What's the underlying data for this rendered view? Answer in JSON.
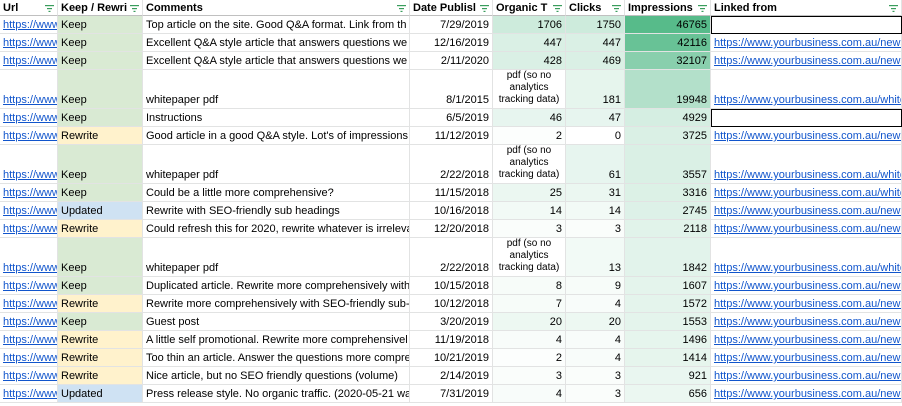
{
  "columns": [
    {
      "key": "url",
      "label": "Url"
    },
    {
      "key": "keep",
      "label": "Keep / Rewri"
    },
    {
      "key": "comments",
      "label": "Comments"
    },
    {
      "key": "date",
      "label": "Date Publisl"
    },
    {
      "key": "organic",
      "label": "Organic T"
    },
    {
      "key": "clicks",
      "label": "Clicks"
    },
    {
      "key": "impressions",
      "label": "Impressions"
    },
    {
      "key": "linked",
      "label": "Linked from"
    }
  ],
  "colors": {
    "keep": "#d9ead3",
    "rewrite": "#fff2cc",
    "updated": "#cfe2f3",
    "green_scale_low": "#ffffff",
    "green_scale_high": "#57bb8a",
    "link": "#1155cc",
    "filter_icon": "#3a9d5d"
  },
  "rows": [
    {
      "url": "https://www",
      "keep": "Keep",
      "status": "keep",
      "comments": "Top article on the site. Good Q&A format. Link from th",
      "date": "7/29/2019",
      "organic": "1706",
      "organic_level": 0.3,
      "clicks": "1750",
      "clicks_level": 0.3,
      "impressions": "46765",
      "impressions_level": 1.0,
      "linked": "",
      "linked_box": true
    },
    {
      "url": "https://www",
      "keep": "Keep",
      "status": "keep",
      "comments": "Excellent Q&A style article that answers questions we",
      "date": "12/16/2019",
      "organic": "447",
      "organic_level": 0.22,
      "clicks": "447",
      "clicks_level": 0.22,
      "impressions": "42116",
      "impressions_level": 0.9,
      "linked": "https://www.yourbusiness.com.au/news"
    },
    {
      "url": "https://www",
      "keep": "Keep",
      "status": "keep",
      "comments": "Excellent Q&A style article that answers questions we",
      "date": "2/11/2020",
      "organic": "428",
      "organic_level": 0.22,
      "clicks": "469",
      "clicks_level": 0.22,
      "impressions": "32107",
      "impressions_level": 0.7,
      "linked": "https://www.yourbusiness.com.au/news"
    },
    {
      "url": "https://www",
      "keep": "Keep",
      "status": "keep",
      "comments": "whitepaper pdf",
      "date": "8/1/2015",
      "organic": "pdf (so no analytics tracking data)",
      "organic_wrap": true,
      "organic_level": 0,
      "clicks": "181",
      "clicks_level": 0.15,
      "impressions": "19948",
      "impressions_level": 0.45,
      "linked": "https://www.yourbusiness.com.au/white",
      "tall": true
    },
    {
      "url": "https://www",
      "keep": "Keep",
      "status": "keep",
      "comments": "Instructions",
      "date": "6/5/2019",
      "organic": "46",
      "organic_level": 0.14,
      "clicks": "47",
      "clicks_level": 0.14,
      "impressions": "4929",
      "impressions_level": 0.25,
      "linked": "",
      "linked_box": true
    },
    {
      "url": "https://www",
      "keep": "Rewrite",
      "status": "rewrite",
      "comments": "Good article in a good Q&A style. Lot's of impressions",
      "date": "11/12/2019",
      "organic": "2",
      "organic_level": 0.02,
      "clicks": "0",
      "clicks_level": 0.0,
      "impressions": "3725",
      "impressions_level": 0.22,
      "linked": "https://www.yourbusiness.com.au/news"
    },
    {
      "url": "https://www",
      "keep": "Keep",
      "status": "keep",
      "comments": "whitepaper pdf",
      "date": "2/22/2018",
      "organic": "pdf (so no analytics tracking data)",
      "organic_wrap": true,
      "organic_level": 0,
      "clicks": "61",
      "clicks_level": 0.14,
      "impressions": "3557",
      "impressions_level": 0.22,
      "linked": "https://www.yourbusiness.com.au/white",
      "tall": true
    },
    {
      "url": "https://www",
      "keep": "Keep",
      "status": "keep",
      "comments": "Could be a little more comprehensive?",
      "date": "11/15/2018",
      "organic": "25",
      "organic_level": 0.12,
      "clicks": "31",
      "clicks_level": 0.12,
      "impressions": "3316",
      "impressions_level": 0.21,
      "linked": "https://www.yourbusiness.com.au/white"
    },
    {
      "url": "https://www",
      "keep": "Updated",
      "status": "updated",
      "comments": "Rewrite with SEO-friendly sub headings",
      "date": "10/16/2018",
      "organic": "14",
      "organic_level": 0.08,
      "clicks": "14",
      "clicks_level": 0.08,
      "impressions": "2745",
      "impressions_level": 0.2,
      "linked": "https://www.yourbusiness.com.au/news"
    },
    {
      "url": "https://www",
      "keep": "Rewrite",
      "status": "rewrite",
      "comments": "Could refresh this for 2020, rewrite whatever is irreleva",
      "date": "12/20/2018",
      "organic": "3",
      "organic_level": 0.03,
      "clicks": "3",
      "clicks_level": 0.03,
      "impressions": "2118",
      "impressions_level": 0.18,
      "linked": "https://www.yourbusiness.com.au/news"
    },
    {
      "url": "https://www",
      "keep": "Keep",
      "status": "keep",
      "comments": "whitepaper pdf",
      "date": "2/22/2018",
      "organic": "pdf (so no analytics tracking data)",
      "organic_wrap": true,
      "organic_level": 0,
      "clicks": "13",
      "clicks_level": 0.08,
      "impressions": "1842",
      "impressions_level": 0.17,
      "linked": "https://www.yourbusiness.com.au/white",
      "tall": true
    },
    {
      "url": "https://www",
      "keep": "Keep",
      "status": "keep",
      "comments": "Duplicated article. Rewrite more comprehensively with",
      "date": "10/15/2018",
      "organic": "8",
      "organic_level": 0.05,
      "clicks": "9",
      "clicks_level": 0.05,
      "impressions": "1607",
      "impressions_level": 0.16,
      "linked": "https://www.yourbusiness.com.au/news"
    },
    {
      "url": "https://www",
      "keep": "Rewrite",
      "status": "rewrite",
      "comments": "Rewrite more comprehensively with SEO-friendly sub-",
      "date": "10/12/2018",
      "organic": "7",
      "organic_level": 0.05,
      "clicks": "4",
      "clicks_level": 0.04,
      "impressions": "1572",
      "impressions_level": 0.16,
      "linked": "https://www.yourbusiness.com.au/news"
    },
    {
      "url": "https://www",
      "keep": "Keep",
      "status": "keep",
      "comments": "Guest post",
      "date": "3/20/2019",
      "organic": "20",
      "organic_level": 0.11,
      "clicks": "20",
      "clicks_level": 0.11,
      "impressions": "1553",
      "impressions_level": 0.16,
      "linked": "https://www.yourbusiness.com.au/news"
    },
    {
      "url": "https://www",
      "keep": "Rewrite",
      "status": "rewrite",
      "comments": "A little self promotional. Rewrite more comprehensivel",
      "date": "11/19/2018",
      "organic": "4",
      "organic_level": 0.04,
      "clicks": "4",
      "clicks_level": 0.04,
      "impressions": "1496",
      "impressions_level": 0.15,
      "linked": "https://www.yourbusiness.com.au/news"
    },
    {
      "url": "https://www",
      "keep": "Rewrite",
      "status": "rewrite",
      "comments": "Too thin an article. Answer the questions more compre",
      "date": "10/21/2019",
      "organic": "2",
      "organic_level": 0.02,
      "clicks": "4",
      "clicks_level": 0.04,
      "impressions": "1414",
      "impressions_level": 0.15,
      "linked": "https://www.yourbusiness.com.au/news"
    },
    {
      "url": "https://www",
      "keep": "Rewrite",
      "status": "rewrite",
      "comments": "Nice article, but no SEO friendly questions (volume)",
      "date": "2/14/2019",
      "organic": "3",
      "organic_level": 0.03,
      "clicks": "3",
      "clicks_level": 0.03,
      "impressions": "921",
      "impressions_level": 0.13,
      "linked": "https://www.yourbusiness.com.au/news"
    },
    {
      "url": "https://www",
      "keep": "Updated",
      "status": "updated",
      "comments": "Press release style. No organic traffic. (2020-05-21 wa",
      "date": "7/31/2019",
      "organic": "4",
      "organic_level": 0.04,
      "clicks": "3",
      "clicks_level": 0.03,
      "impressions": "656",
      "impressions_level": 0.12,
      "linked": "https://www.yourbusiness.com.au/news"
    }
  ]
}
